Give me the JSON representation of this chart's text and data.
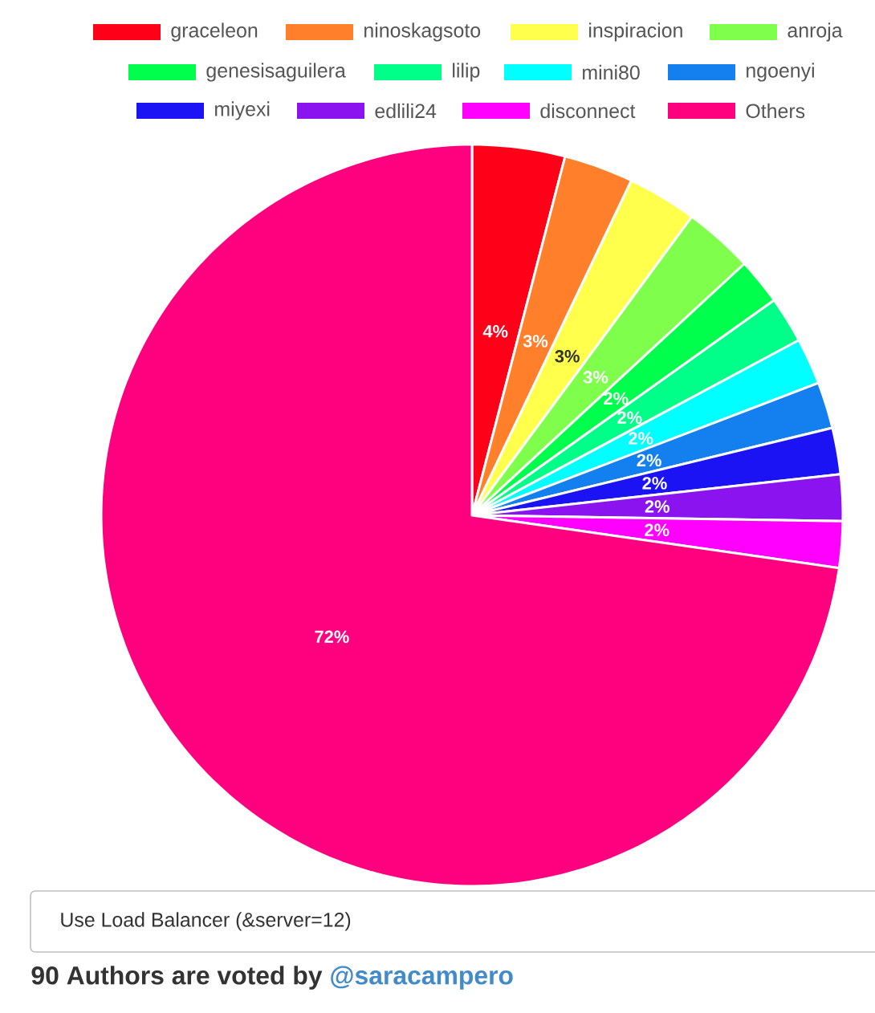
{
  "chart_data": {
    "type": "pie",
    "categories": [
      "graceleon",
      "ninoskagsoto",
      "inspiracion",
      "anroja",
      "genesisaguilera",
      "lilip",
      "mini80",
      "ngoenyi",
      "miyexi",
      "edlili24",
      "disconnect",
      "Others"
    ],
    "values": [
      4,
      3,
      3,
      3,
      2,
      2,
      2,
      2,
      2,
      2,
      2,
      72
    ],
    "value_labels": [
      "4%",
      "3%",
      "3%",
      "3%",
      "2%",
      "2%",
      "2%",
      "2%",
      "2%",
      "2%",
      "2%",
      "72%"
    ],
    "colors": [
      "#ff0019",
      "#ff7f2a",
      "#ffff4c",
      "#7fff4c",
      "#00ff4c",
      "#00ff88",
      "#00ffff",
      "#1480f0",
      "#1c13f5",
      "#8a13f0",
      "#ff00ff",
      "#ff007f"
    ],
    "legend": "top",
    "annotations": [
      "Use Load Balancer (&server=12)",
      "90 Authors are voted by",
      "@saracampero"
    ]
  }
}
